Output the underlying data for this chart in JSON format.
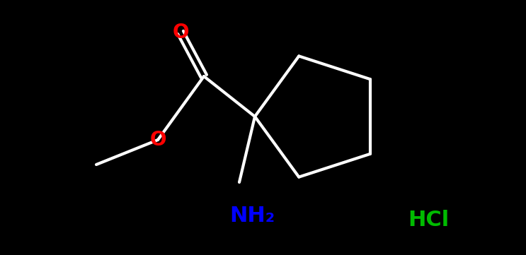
{
  "background_color": "#000000",
  "bond_color": "#ffffff",
  "bond_width": 3.0,
  "atom_O_color": "#ff0000",
  "atom_NH2_color": "#0000ff",
  "atom_HCl_color": "#00bb00",
  "label_NH2": "NH₂",
  "label_HCl": "HCl",
  "label_O1": "O",
  "label_O2": "O",
  "figsize": [
    7.43,
    3.61
  ],
  "dpi": 100,
  "font_size_O": 20,
  "font_size_label": 22,
  "font_size_HCl": 22
}
